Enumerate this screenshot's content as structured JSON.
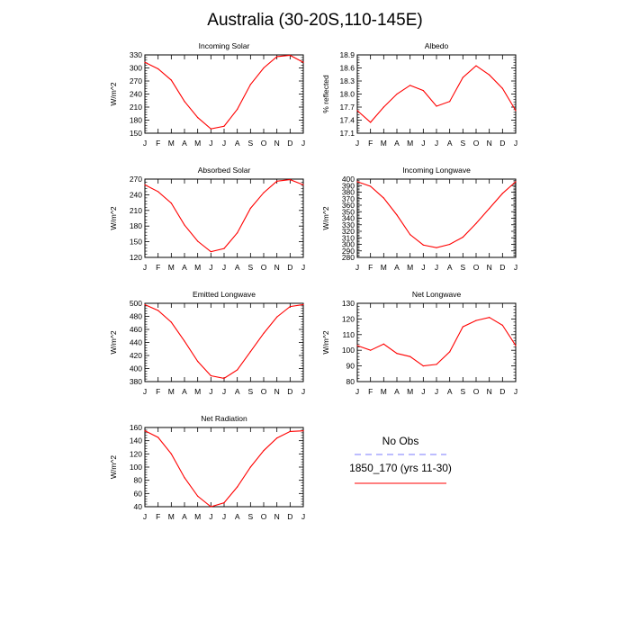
{
  "title": "Australia (30-20S,110-145E)",
  "legend": {
    "obs_label": "No Obs",
    "obs_color": "#7b7bff",
    "model_label": "1850_170 (yrs 11-30)",
    "model_color": "#ff0000"
  },
  "chart_data": [
    {
      "type": "line",
      "title": "Incoming Solar",
      "ylabel": "W/m^2",
      "categories": [
        "J",
        "F",
        "M",
        "A",
        "M",
        "J",
        "J",
        "A",
        "S",
        "O",
        "N",
        "D",
        "J"
      ],
      "ylim": [
        150,
        330
      ],
      "yticks": [
        150,
        180,
        210,
        240,
        270,
        300,
        330
      ],
      "series": [
        {
          "values": [
            313,
            298,
            272,
            223,
            186,
            160,
            166,
            205,
            262,
            300,
            326,
            329,
            313
          ]
        }
      ]
    },
    {
      "type": "line",
      "title": "Albedo",
      "ylabel": "% reflected",
      "categories": [
        "J",
        "F",
        "M",
        "A",
        "M",
        "J",
        "J",
        "A",
        "S",
        "O",
        "N",
        "D",
        "J"
      ],
      "ylim": [
        17.1,
        18.9
      ],
      "yticks": [
        17.1,
        17.4,
        17.7,
        18.0,
        18.3,
        18.6,
        18.9
      ],
      "series": [
        {
          "values": [
            17.62,
            17.35,
            17.7,
            18.0,
            18.2,
            18.08,
            17.72,
            17.83,
            18.38,
            18.65,
            18.44,
            18.13,
            17.62
          ]
        }
      ]
    },
    {
      "type": "line",
      "title": "Absorbed Solar",
      "ylabel": "W/m^2",
      "categories": [
        "J",
        "F",
        "M",
        "A",
        "M",
        "J",
        "J",
        "A",
        "S",
        "O",
        "N",
        "D",
        "J"
      ],
      "ylim": [
        120,
        270
      ],
      "yticks": [
        120,
        150,
        180,
        210,
        240,
        270
      ],
      "series": [
        {
          "values": [
            259,
            246,
            224,
            182,
            151,
            131,
            137,
            167,
            214,
            244,
            266,
            269,
            259
          ]
        }
      ]
    },
    {
      "type": "line",
      "title": "Incoming Longwave",
      "ylabel": "W/m^2",
      "categories": [
        "J",
        "F",
        "M",
        "A",
        "M",
        "J",
        "J",
        "A",
        "S",
        "O",
        "N",
        "D",
        "J"
      ],
      "ylim": [
        280,
        400
      ],
      "yticks": [
        280,
        290,
        300,
        310,
        320,
        330,
        340,
        350,
        360,
        370,
        380,
        390,
        400
      ],
      "series": [
        {
          "values": [
            396,
            389,
            371,
            345,
            315,
            299,
            295,
            300,
            311,
            332,
            355,
            378,
            396
          ]
        }
      ]
    },
    {
      "type": "line",
      "title": "Emitted Longwave",
      "ylabel": "W/m^2",
      "categories": [
        "J",
        "F",
        "M",
        "A",
        "M",
        "J",
        "J",
        "A",
        "S",
        "O",
        "N",
        "D",
        "J"
      ],
      "ylim": [
        380,
        500
      ],
      "yticks": [
        380,
        400,
        420,
        440,
        460,
        480,
        500
      ],
      "series": [
        {
          "values": [
            498,
            489,
            471,
            442,
            411,
            389,
            385,
            398,
            426,
            454,
            479,
            495,
            498
          ]
        }
      ]
    },
    {
      "type": "line",
      "title": "Net Longwave",
      "ylabel": "W/m^2",
      "categories": [
        "J",
        "F",
        "M",
        "A",
        "M",
        "J",
        "J",
        "A",
        "S",
        "O",
        "N",
        "D",
        "J"
      ],
      "ylim": [
        80,
        130
      ],
      "yticks": [
        80,
        90,
        100,
        110,
        120,
        130
      ],
      "series": [
        {
          "values": [
            103,
            100,
            104,
            98,
            96,
            90,
            91,
            99,
            115,
            119,
            121,
            116,
            103
          ]
        }
      ]
    },
    {
      "type": "line",
      "title": "Net Radiation",
      "ylabel": "W/m^2",
      "categories": [
        "J",
        "F",
        "M",
        "A",
        "M",
        "J",
        "J",
        "A",
        "S",
        "O",
        "N",
        "D",
        "J"
      ],
      "ylim": [
        40,
        160
      ],
      "yticks": [
        40,
        60,
        80,
        100,
        120,
        140,
        160
      ],
      "series": [
        {
          "values": [
            155,
            145,
            120,
            84,
            56,
            40,
            46,
            70,
            100,
            125,
            144,
            154,
            155
          ]
        }
      ]
    }
  ]
}
